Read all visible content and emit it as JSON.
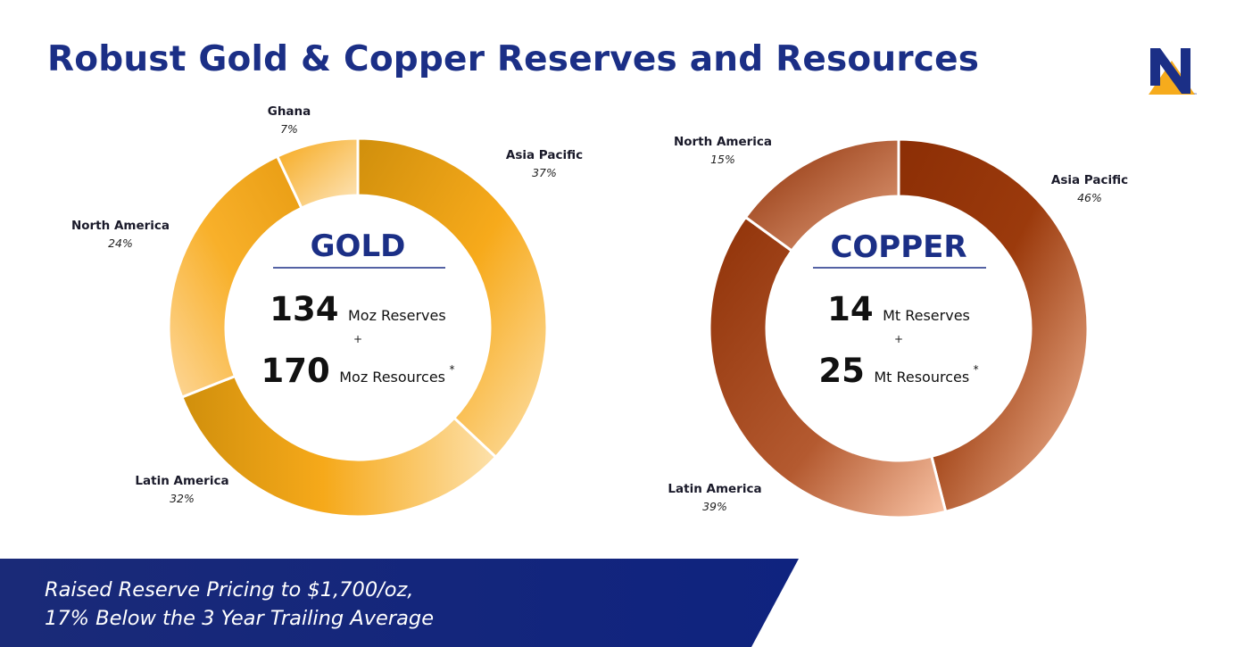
{
  "title": "Robust Gold & Copper Reserves and Resources",
  "logo_icon": "newmont-n-logo-icon",
  "brand_colors": {
    "navy": "#1b2f86",
    "gold": "#f6ab1c",
    "copper": "#9a3a0a"
  },
  "chart_data": [
    {
      "type": "pie",
      "variant": "donut",
      "center_title": "GOLD",
      "center_lines": [
        {
          "value": "134",
          "unit": "Moz Reserves",
          "mark": ""
        },
        {
          "value": "170",
          "unit": "Moz Resources",
          "mark": "*"
        }
      ],
      "plus": "+",
      "slices": [
        {
          "label": "Asia Pacific",
          "pct": "37%",
          "value": 37
        },
        {
          "label": "Latin America",
          "pct": "32%",
          "value": 32
        },
        {
          "label": "North America",
          "pct": "24%",
          "value": 24
        },
        {
          "label": "Ghana",
          "pct": "7%",
          "value": 7
        }
      ]
    },
    {
      "type": "pie",
      "variant": "donut",
      "center_title": "COPPER",
      "center_lines": [
        {
          "value": "14",
          "unit": "Mt Reserves",
          "mark": ""
        },
        {
          "value": "25",
          "unit": "Mt Resources",
          "mark": "*"
        }
      ],
      "plus": "+",
      "slices": [
        {
          "label": "Asia Pacific",
          "pct": "46%",
          "value": 46
        },
        {
          "label": "Latin America",
          "pct": "39%",
          "value": 39
        },
        {
          "label": "North America",
          "pct": "15%",
          "value": 15
        }
      ]
    }
  ],
  "banner": {
    "line1": "Raised Reserve Pricing to $1,700/oz,",
    "line2": "17% Below the 3 Year Trailing Average"
  }
}
